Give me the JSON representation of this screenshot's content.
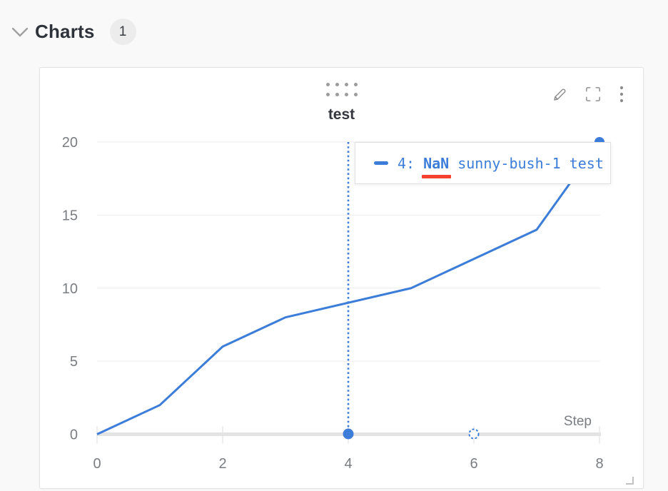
{
  "header": {
    "title": "Charts",
    "count": "1"
  },
  "panel": {
    "title": "test"
  },
  "tooltip": {
    "step_label": "4:",
    "value": "NaN",
    "run_name": "sunny-bush-1",
    "metric": "test"
  },
  "chart_data": {
    "type": "line",
    "title": "test",
    "xlabel": "Step",
    "ylabel": "",
    "x": [
      0,
      1,
      2,
      3,
      4,
      5,
      6,
      7,
      8
    ],
    "series": [
      {
        "name": "sunny-bush-1 test",
        "values": [
          0,
          2,
          6,
          8,
          null,
          10,
          null,
          14,
          20
        ]
      }
    ],
    "nan_steps": [
      4,
      6
    ],
    "hover_step": 4,
    "x_ticks": [
      0,
      2,
      4,
      6,
      8
    ],
    "y_ticks": [
      0,
      5,
      10,
      15,
      20
    ],
    "xlim": [
      0,
      8
    ],
    "ylim": [
      0,
      20
    ],
    "grid": "horizontal",
    "legend_position": "tooltip",
    "line_color": "#3b7dd8"
  },
  "colors": {
    "accent_blue": "#3b7dd8",
    "nan_underline_red": "#f4402c",
    "page_bg": "#f9f9f9",
    "panel_bg": "#ffffff",
    "grid": "#ececec",
    "tick_text": "#797d82"
  }
}
